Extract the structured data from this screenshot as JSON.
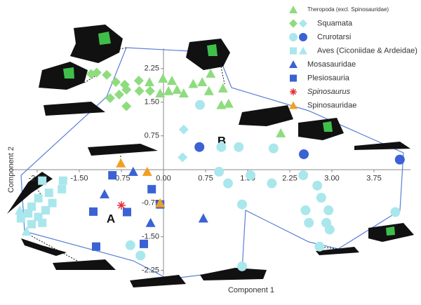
{
  "chart_data": {
    "type": "scatter",
    "x_label": "Component 1",
    "y_label": "Component 2",
    "xlim": [
      -2.75,
      4.4
    ],
    "ylim": [
      -2.35,
      2.7
    ],
    "xticks": [
      -2.25,
      {
        "value": -1.5,
        "label": "-1.50"
      },
      -0.75,
      {
        "value": 0,
        "label": "0.00"
      },
      0.75,
      {
        "value": 1.5,
        "label": "1.50"
      },
      2.25,
      {
        "value": 3,
        "label": "3.00"
      },
      3.75
    ],
    "yticks": [
      2.25,
      {
        "value": 1.5,
        "label": "1.50"
      },
      0.75,
      -0.75,
      {
        "value": -1.5,
        "label": "-1.50"
      },
      -2.25
    ],
    "annotations": [
      "A",
      "B"
    ],
    "series": [
      {
        "name": "Theropoda (excl. Spinosauridae)",
        "marker": "triangle",
        "color": "#8edc7e",
        "x": [
          -0.06,
          0.09,
          0.24,
          0.36,
          0.53,
          0.69,
          0.84,
          0.15,
          -0.01,
          0.81,
          1.06,
          1.16,
          1.03,
          2.09,
          -0.25
        ],
        "y": [
          1.7,
          1.75,
          1.78,
          1.7,
          1.91,
          1.95,
          2.14,
          1.98,
          2.03,
          1.75,
          1.81,
          1.47,
          1.44,
          0.81,
          1.95
        ]
      },
      {
        "name": "Squamata",
        "marker": "diamond",
        "color": "#8edc7e",
        "colors": [
          "#8edc7e",
          "#8edc7e",
          "#8edc7e",
          "#8edc7e",
          "#8edc7e",
          "#8edc7e",
          "#8edc7e",
          "#8edc7e",
          "#8edc7e",
          "#8edc7e",
          "#8edc7e",
          "#8edc7e",
          "#a9e7ec",
          "#a9e7ec"
        ],
        "x": [
          -1.29,
          -1.19,
          -1.01,
          -0.85,
          -0.69,
          -0.66,
          -0.44,
          -0.43,
          -0.24,
          -0.79,
          -0.66,
          -0.95,
          0.36,
          0.34
        ],
        "y": [
          2.13,
          2.16,
          2.11,
          1.95,
          1.89,
          1.78,
          1.98,
          1.75,
          1.75,
          1.67,
          1.41,
          1.59,
          0.89,
          0.27
        ]
      },
      {
        "name": "Crurotarsi",
        "marker": "circle",
        "color": "#a9e7ec",
        "colors": [
          "#a9e7ec",
          "#a9e7ec",
          "#a9e7ec",
          "#a9e7ec",
          "#a9e7ec",
          "#a9e7ec",
          "#a9e7ec",
          "#a9e7ec",
          "#a9e7ec",
          "#a9e7ec",
          "#a9e7ec",
          "#a9e7ec",
          "#a9e7ec",
          "#a9e7ec",
          "#a9e7ec",
          "#a9e7ec",
          "#a9e7ec",
          "#a9e7ec",
          "#a9e7ec",
          "#a9e7ec",
          "#a9e7ec",
          "#a9e7ec",
          "#3a62d4",
          "#3a62d4",
          "#3a62d4"
        ],
        "x": [
          0.65,
          1.03,
          1.34,
          0.99,
          1.15,
          1.4,
          1.55,
          1.93,
          1.96,
          2.49,
          2.74,
          2.81,
          2.94,
          2.9,
          2.96,
          2.59,
          2.53,
          2.78,
          4.13,
          -0.59,
          -0.41,
          1.4,
          0.64,
          2.5,
          4.21
        ],
        "y": [
          1.44,
          0.5,
          0.5,
          -0.05,
          -0.31,
          -0.78,
          -0.13,
          -0.31,
          0.47,
          -0.13,
          -0.36,
          -0.63,
          -0.91,
          -1.19,
          -1.34,
          -1.19,
          -0.91,
          -1.72,
          -0.95,
          -1.69,
          -1.92,
          -2.16,
          0.5,
          0.34,
          0.22
        ]
      },
      {
        "name": "Aves (Ciconiidae & Ardeidae)",
        "marker": "square",
        "color": "#a9e7ec",
        "markers": [
          "square",
          "square",
          "square",
          "square",
          "square",
          "square",
          "square",
          "square",
          "square",
          "square",
          "square",
          "square",
          "square",
          "triangle",
          "triangle"
        ],
        "x": [
          -2.16,
          -1.79,
          -1.81,
          -2.04,
          -2.23,
          -1.98,
          -2.35,
          -2.1,
          -2.41,
          -2.23,
          -2.54,
          -2.35,
          -2.16,
          -2.44,
          -2.56
        ],
        "y": [
          -0.25,
          -0.25,
          -0.44,
          -0.52,
          -0.64,
          -0.75,
          -0.83,
          -0.91,
          -0.98,
          -1.06,
          -1.09,
          -1.22,
          -1.19,
          -1.38,
          -0.91
        ]
      },
      {
        "name": "Mosasauridae",
        "marker": "triangle",
        "color": "#3a62d4",
        "x": [
          -0.54,
          -1.05,
          -0.23,
          0.71
        ],
        "y": [
          -0.05,
          -0.55,
          -1.19,
          -1.09
        ]
      },
      {
        "name": "Plesiosauria",
        "marker": "square",
        "color": "#3a62d4",
        "x": [
          -0.91,
          -0.21,
          -0.06,
          -1.25,
          -0.65,
          -1.2,
          -0.35
        ],
        "y": [
          -0.13,
          -0.44,
          -0.78,
          -0.94,
          -0.95,
          -1.72,
          -1.66
        ]
      },
      {
        "name": "Spinosaurus",
        "marker": "asterisk",
        "color": "#e0303a",
        "italic": true,
        "x": [
          -0.75
        ],
        "y": [
          -0.8
        ]
      },
      {
        "name": "Spinosauridae",
        "marker": "triangle",
        "color": "#f0a020",
        "x": [
          -0.76,
          -0.29,
          -0.06
        ],
        "y": [
          0.14,
          -0.05,
          -0.75
        ]
      }
    ]
  }
}
